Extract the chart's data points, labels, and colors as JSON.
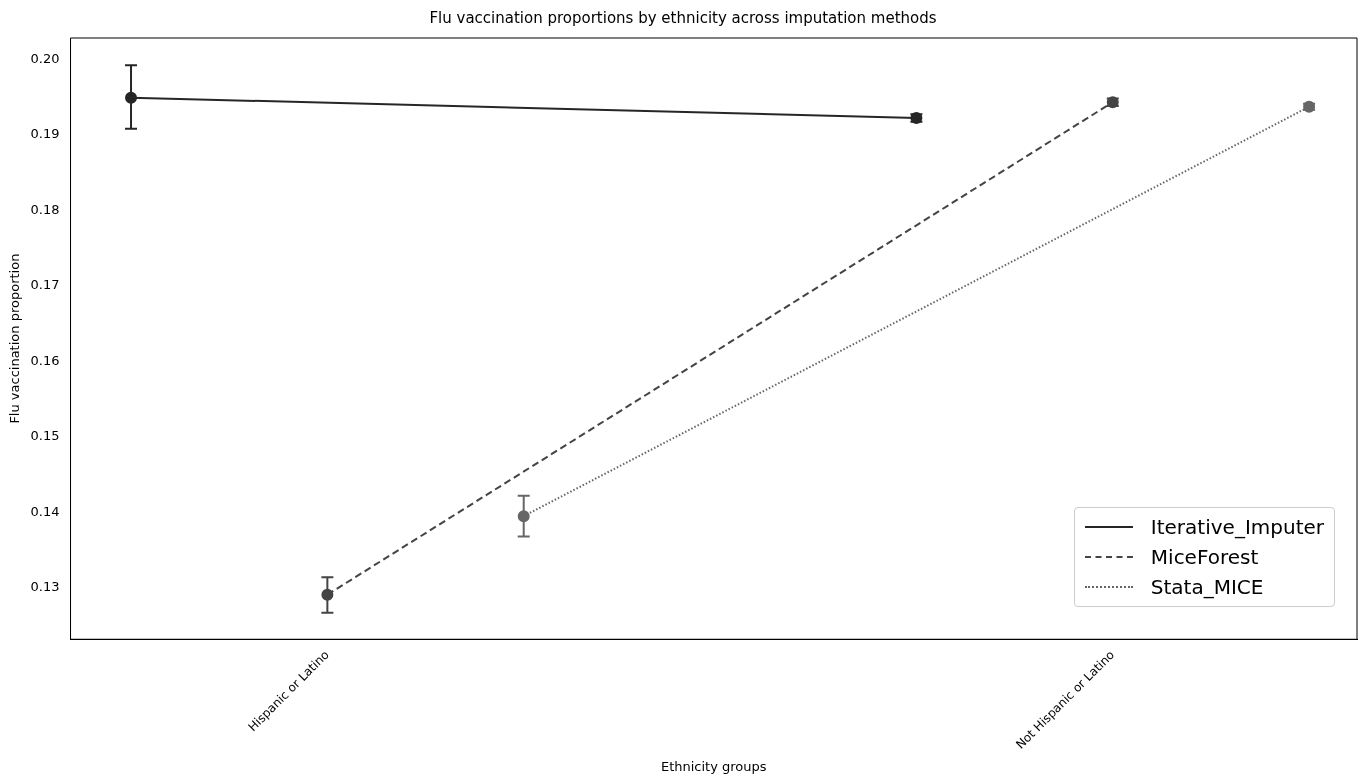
{
  "chart_data": {
    "type": "line",
    "title": "Flu vaccination proportions by ethnicity across imputation methods",
    "xlabel": "Ethnicity groups",
    "ylabel": "Flu vaccination proportion",
    "categories": [
      "Hispanic or Latino",
      "Not Hispanic or Latino"
    ],
    "series": [
      {
        "name": "Iterative_Imputer",
        "color": "#262626",
        "line_style": "solid",
        "values": [
          0.1949,
          0.1922
        ],
        "errors": [
          [
            0.1908,
            0.1992
          ],
          [
            0.1917,
            0.1927
          ]
        ]
      },
      {
        "name": "MiceForest",
        "color": "#444444",
        "line_style": "dashed",
        "values": [
          0.1291,
          0.1943
        ],
        "errors": [
          [
            0.1267,
            0.1314
          ],
          [
            0.1938,
            0.1948
          ]
        ]
      },
      {
        "name": "Stata_MICE",
        "color": "#666666",
        "line_style": "dotted",
        "values": [
          0.1395,
          0.1937
        ],
        "errors": [
          [
            0.1368,
            0.1422
          ],
          [
            0.1933,
            0.1941
          ]
        ]
      }
    ],
    "ylim": [
      0.1232,
      0.2028
    ],
    "yticks": [
      0.13,
      0.14,
      0.15,
      0.16,
      0.17,
      0.18,
      0.19,
      {
        "value": 0.2,
        "label": "0.20"
      }
    ],
    "legend": "bottom right",
    "marker": "circle",
    "grid": false
  }
}
